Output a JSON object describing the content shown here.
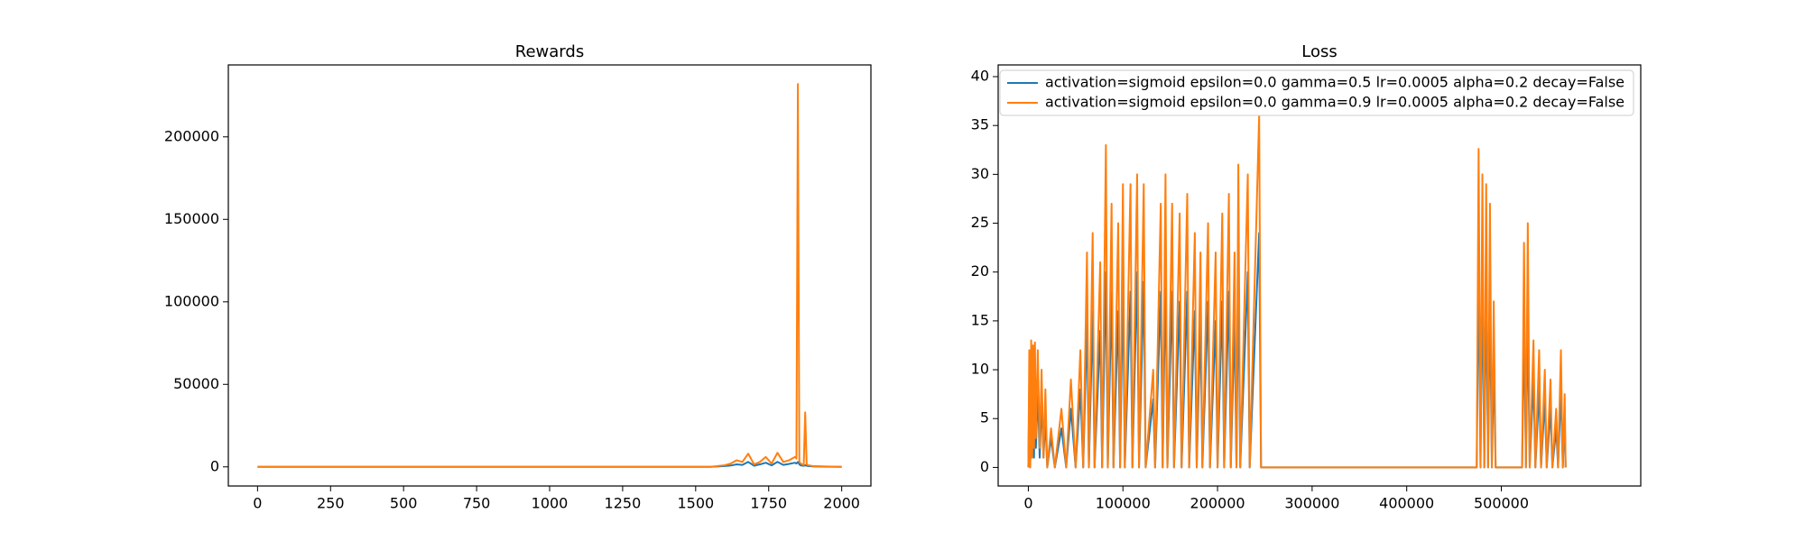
{
  "chart_data": [
    {
      "type": "line",
      "title": "Rewards",
      "x": [
        0,
        100,
        200,
        300,
        400,
        500,
        600,
        700,
        800,
        900,
        1000,
        1100,
        1200,
        1300,
        1400,
        1500,
        1550,
        1600,
        1620,
        1640,
        1660,
        1680,
        1700,
        1720,
        1740,
        1760,
        1780,
        1800,
        1820,
        1840,
        1845,
        1850,
        1855,
        1860,
        1870,
        1875,
        1880,
        1885,
        1900,
        1950,
        2000
      ],
      "series": [
        {
          "color": "#1f77b4",
          "values": [
            0,
            0,
            0,
            0,
            0,
            0,
            0,
            0,
            0,
            0,
            0,
            0,
            0,
            0,
            0,
            0,
            0,
            500,
            800,
            1500,
            1200,
            3000,
            700,
            1500,
            2500,
            900,
            3000,
            1200,
            1800,
            2500,
            2000,
            3000,
            1500,
            900,
            600,
            1000,
            700,
            500,
            300,
            100,
            0
          ]
        },
        {
          "color": "#ff7f0e",
          "values": [
            0,
            0,
            0,
            0,
            0,
            0,
            0,
            0,
            0,
            0,
            0,
            0,
            0,
            0,
            0,
            0,
            0,
            1000,
            2000,
            4000,
            3000,
            8000,
            1500,
            3000,
            6000,
            2000,
            8500,
            3000,
            4000,
            6000,
            5000,
            232000,
            3000,
            2000,
            1000,
            33000,
            1500,
            1000,
            500,
            200,
            0
          ]
        }
      ],
      "xlim": [
        -100,
        2100
      ],
      "xticks": [
        0,
        250,
        500,
        750,
        1000,
        1250,
        1500,
        1750,
        2000
      ],
      "ylim": [
        -11600,
        243600
      ],
      "yticks": [
        0,
        50000,
        100000,
        150000,
        200000
      ]
    },
    {
      "type": "line",
      "title": "Loss",
      "x": [
        0,
        1000,
        2000,
        3000,
        4000,
        5000,
        6000,
        7000,
        8000,
        10000,
        12000,
        14000,
        16000,
        18000,
        20000,
        24000,
        28000,
        35000,
        40000,
        45000,
        50000,
        55000,
        58000,
        62000,
        64000,
        68000,
        70000,
        76000,
        78000,
        82000,
        84000,
        88000,
        90000,
        95000,
        97000,
        100000,
        102000,
        108000,
        110000,
        115000,
        117000,
        122000,
        124000,
        132000,
        134000,
        140000,
        142000,
        145000,
        147000,
        152000,
        154000,
        160000,
        162000,
        168000,
        170000,
        176000,
        178000,
        182000,
        184000,
        190000,
        192000,
        198000,
        200000,
        205000,
        207000,
        212000,
        214000,
        218000,
        220000,
        222000,
        224000,
        232000,
        234000,
        244000,
        246000,
        300000,
        400000,
        474000,
        476000,
        478000,
        480000,
        482000,
        484000,
        486000,
        488000,
        490000,
        492000,
        494000,
        522000,
        524000,
        526000,
        528000,
        530000,
        534000,
        536000,
        540000,
        542000,
        546000,
        548000,
        552000,
        554000,
        558000,
        560000,
        563000,
        565000,
        567000,
        568000
      ],
      "series": [
        {
          "name": "activation=sigmoid epsilon=0.0 gamma=0.5 lr=0.0005 alpha=0.2 decay=False",
          "color": "#1f77b4",
          "values": [
            0,
            8,
            0,
            9,
            1,
            8,
            1,
            9,
            2,
            8,
            1,
            7,
            1,
            5,
            0,
            3,
            0,
            4,
            0,
            6,
            0,
            8,
            0,
            15,
            0,
            16,
            0,
            14,
            0,
            20,
            0,
            18,
            0,
            16,
            0,
            19,
            0,
            18,
            0,
            20,
            0,
            19,
            0,
            7,
            0,
            18,
            0,
            20,
            0,
            18,
            0,
            17,
            0,
            18,
            0,
            16,
            0,
            15,
            0,
            17,
            0,
            15,
            0,
            17,
            0,
            18,
            0,
            15,
            0,
            20,
            0,
            20,
            0,
            24,
            0,
            0,
            0,
            0,
            21,
            0,
            20,
            0,
            19,
            0,
            18,
            0,
            11,
            0,
            0,
            15,
            0,
            16,
            0,
            9,
            0,
            8,
            0,
            7,
            0,
            6,
            0,
            4,
            0,
            8,
            0,
            5,
            0
          ]
        },
        {
          "name": "activation=sigmoid epsilon=0.0 gamma=0.9 lr=0.0005 alpha=0.2 decay=False",
          "color": "#ff7f0e",
          "values": [
            0,
            12,
            0,
            13,
            1,
            12.5,
            2,
            12.8,
            3,
            12,
            2,
            10,
            1,
            8,
            0,
            4,
            0,
            6,
            0,
            9,
            0,
            12,
            0,
            22,
            0,
            24,
            0,
            21,
            0,
            33,
            0,
            27,
            0,
            25,
            0,
            29,
            0,
            29,
            0,
            30,
            0,
            29,
            0,
            10,
            0,
            27,
            0,
            30,
            0,
            27,
            0,
            26,
            0,
            28,
            0,
            24,
            0,
            22,
            0,
            25,
            0,
            22,
            0,
            26,
            0,
            28,
            0,
            22,
            0,
            31,
            0,
            30,
            0,
            36,
            0,
            0,
            0,
            0,
            32.6,
            0,
            30,
            0,
            29,
            0,
            27,
            0,
            17,
            0,
            0,
            23,
            0,
            25,
            0,
            13,
            0,
            12,
            0,
            10,
            0,
            9,
            0,
            6,
            0,
            12,
            0,
            7.5,
            0
          ]
        }
      ],
      "legend": "upper right",
      "xlim": [
        -31900,
        647400
      ],
      "xticks": [
        0,
        100000,
        200000,
        300000,
        400000,
        500000
      ],
      "ylim": [
        -1.9,
        41.2
      ],
      "yticks": [
        0,
        5,
        10,
        15,
        20,
        25,
        30,
        35,
        40
      ]
    }
  ]
}
